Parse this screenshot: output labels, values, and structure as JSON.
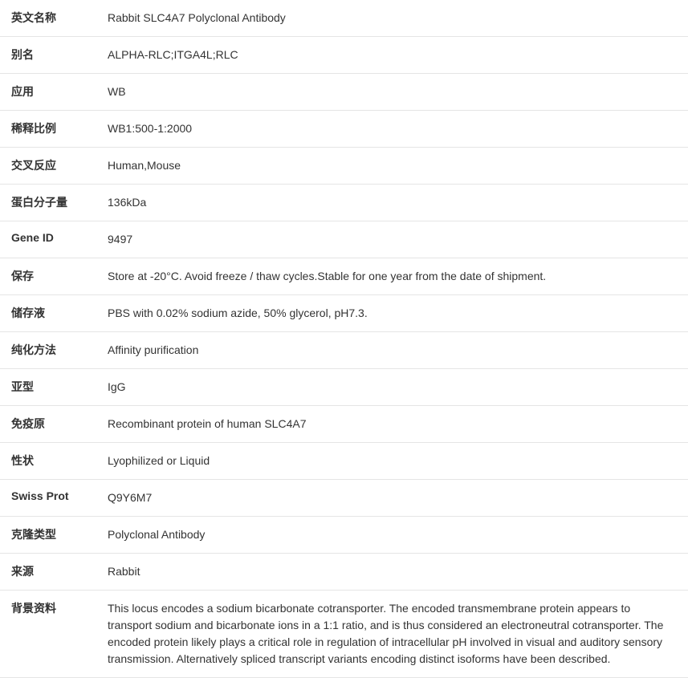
{
  "rows": [
    {
      "label": "英文名称",
      "value": "Rabbit SLC4A7 Polyclonal Antibody"
    },
    {
      "label": "别名",
      "value": "ALPHA-RLC;ITGA4L;RLC"
    },
    {
      "label": "应用",
      "value": "WB"
    },
    {
      "label": "稀释比例",
      "value": "WB1:500-1:2000"
    },
    {
      "label": "交叉反应",
      "value": "Human,Mouse"
    },
    {
      "label": "蛋白分子量",
      "value": "136kDa"
    },
    {
      "label": "Gene ID",
      "value": "9497"
    },
    {
      "label": "保存",
      "value": "Store at -20°C. Avoid freeze / thaw cycles.Stable for one year from the date of shipment."
    },
    {
      "label": "储存液",
      "value": "PBS with 0.02% sodium azide, 50% glycerol, pH7.3."
    },
    {
      "label": "纯化方法",
      "value": "Affinity purification"
    },
    {
      "label": "亚型",
      "value": "IgG"
    },
    {
      "label": "免疫原",
      "value": "Recombinant protein of human SLC4A7"
    },
    {
      "label": "性状",
      "value": "Lyophilized or Liquid"
    },
    {
      "label": "Swiss Prot",
      "value": "Q9Y6M7"
    },
    {
      "label": "克隆类型",
      "value": "Polyclonal Antibody"
    },
    {
      "label": "来源",
      "value": "Rabbit"
    },
    {
      "label": "背景资料",
      "value": "This locus encodes a sodium bicarbonate cotransporter. The encoded transmembrane protein appears to transport sodium and bicarbonate ions in a 1:1 ratio, and is thus considered an electroneutral cotransporter. The encoded protein likely plays a critical role in regulation of intracellular pH involved in visual and auditory sensory transmission. Alternatively spliced transcript variants encoding distinct isoforms have been described."
    }
  ],
  "style": {
    "label_width": 130,
    "font_size": 14,
    "border_color": "#e5e5e5",
    "text_color": "#333333",
    "background_color": "#ffffff",
    "row_padding_v": 12
  }
}
